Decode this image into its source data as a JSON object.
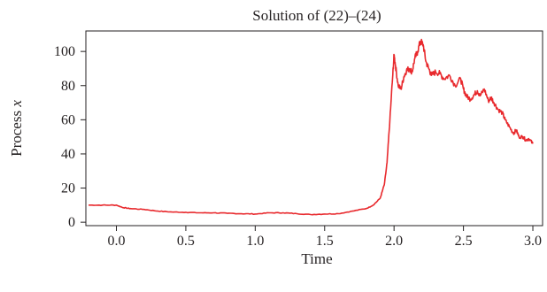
{
  "chart_data": {
    "type": "line",
    "title": "Solution of (22)–(24)",
    "xlabel": "Time",
    "ylabel_main": "Process ",
    "ylabel_var": "x",
    "xlim": [
      -0.22,
      3.07
    ],
    "ylim": [
      -2,
      112
    ],
    "xticks": [
      0.0,
      0.5,
      1.0,
      1.5,
      2.0,
      2.5,
      3.0
    ],
    "xtick_labels": [
      "0.0",
      "0.5",
      "1.0",
      "1.5",
      "2.0",
      "2.5",
      "3.0"
    ],
    "yticks": [
      0,
      20,
      40,
      60,
      80,
      100
    ],
    "ytick_labels": [
      "0",
      "20",
      "40",
      "60",
      "80",
      "100"
    ],
    "grid": false,
    "legend": "none",
    "line_color": "#e8292d",
    "series": [
      {
        "x": [
          -0.2,
          -0.1,
          0.0,
          0.05,
          0.1,
          0.2,
          0.3,
          0.4,
          0.5,
          0.6,
          0.7,
          0.8,
          0.9,
          1.0,
          1.1,
          1.2,
          1.3,
          1.4,
          1.5,
          1.6,
          1.7,
          1.8,
          1.85,
          1.9,
          1.93,
          1.95,
          1.97,
          1.99,
          2.0,
          2.01,
          2.03,
          2.05,
          2.07,
          2.09,
          2.11,
          2.13,
          2.15,
          2.17,
          2.19,
          2.21,
          2.23,
          2.25,
          2.27,
          2.3,
          2.33,
          2.36,
          2.4,
          2.44,
          2.48,
          2.5,
          2.52,
          2.55,
          2.58,
          2.6,
          2.62,
          2.65,
          2.68,
          2.7,
          2.72,
          2.75,
          2.78,
          2.8,
          2.83,
          2.86,
          2.88,
          2.9,
          2.93,
          2.95,
          2.97,
          3.0
        ],
        "y": [
          10,
          10,
          10,
          8.5,
          8,
          7.5,
          6.5,
          6,
          5.8,
          5.5,
          5.5,
          5.2,
          5,
          4.8,
          5.5,
          5.5,
          5,
          4.5,
          4.8,
          5,
          6.5,
          8,
          10,
          14,
          22,
          35,
          60,
          85,
          98,
          92,
          80,
          78,
          85,
          89,
          90,
          88,
          96,
          100,
          106,
          104,
          94,
          90,
          86,
          88,
          87,
          84,
          86,
          80,
          84,
          78,
          74,
          72,
          75,
          77,
          74,
          78,
          71,
          73,
          70,
          66,
          64,
          60,
          56,
          52,
          54,
          50,
          50,
          48,
          49,
          46
        ]
      }
    ]
  }
}
